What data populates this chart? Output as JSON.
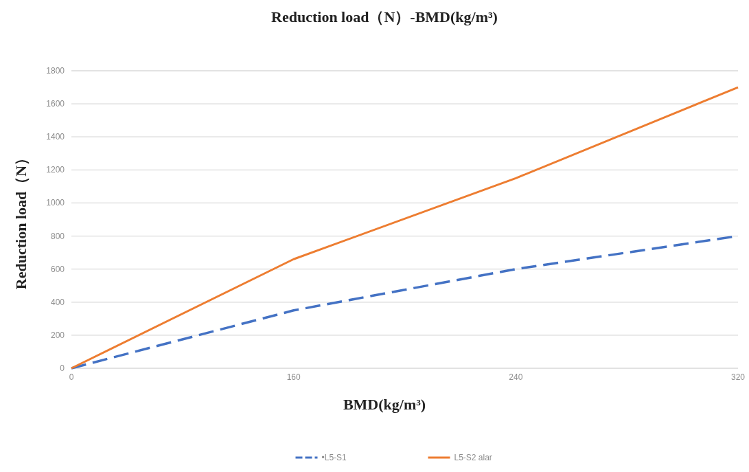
{
  "chart_data": {
    "type": "line",
    "title": "Reduction load（N）-BMD(kg/m³)",
    "xlabel": "BMD(kg/m³)",
    "ylabel": "Reduction load（N）",
    "categories": [
      "0",
      "160",
      "240",
      "320"
    ],
    "series": [
      {
        "name": "•L5-S1",
        "color": "#4472c4",
        "line_style": "dashed",
        "values": [
          0,
          350,
          600,
          800
        ]
      },
      {
        "name": "L5-S2 alar",
        "color": "#ed7d31",
        "line_style": "solid",
        "values": [
          0,
          660,
          1150,
          1700
        ]
      }
    ],
    "ylim": [
      0,
      1800
    ],
    "yticks": [
      0,
      200,
      400,
      600,
      800,
      1000,
      1200,
      1400,
      1600,
      1800
    ],
    "grid": "y",
    "legend": "bottom"
  }
}
